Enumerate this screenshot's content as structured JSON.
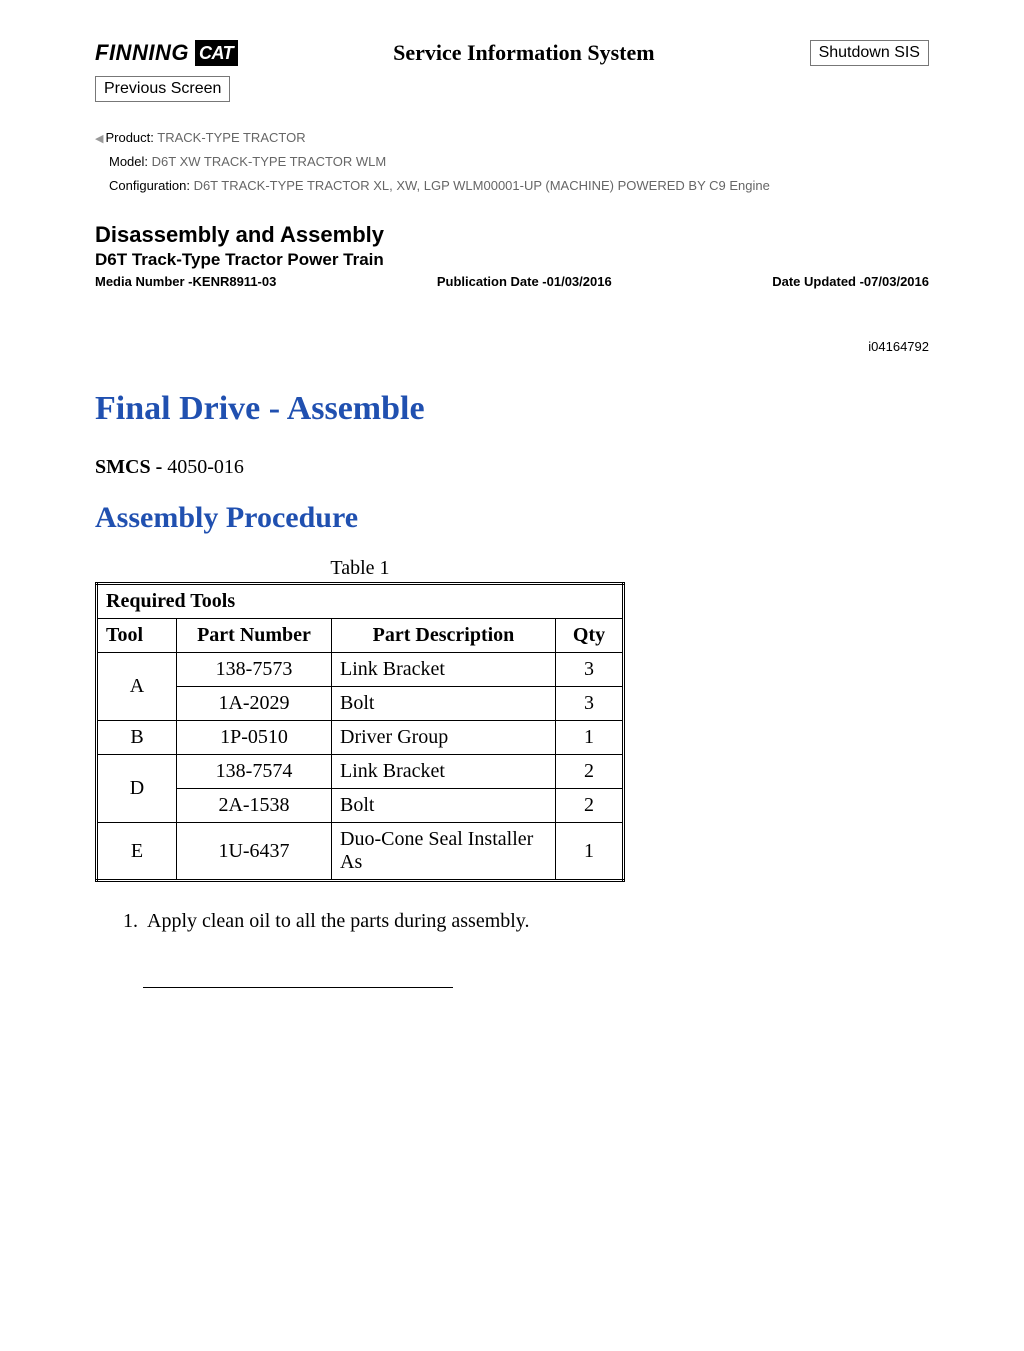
{
  "header": {
    "logo_text": "FINNING",
    "cat_badge": "CAT",
    "sis_title": "Service Information System",
    "shutdown_label": "Shutdown SIS",
    "previous_label": "Previous Screen"
  },
  "product_meta": {
    "product_label": "Product:",
    "product_value": "  TRACK-TYPE TRACTOR",
    "model_label": "Model:",
    "model_value": "  D6T XW TRACK-TYPE TRACTOR WLM",
    "config_label": "Configuration:",
    "config_value": " D6T TRACK-TYPE TRACTOR XL, XW, LGP WLM00001-UP (MACHINE) POWERED BY C9 Engine"
  },
  "doc_header": {
    "section_title": "Disassembly and Assembly",
    "section_sub": "D6T Track-Type Tractor Power Train",
    "media_number": "Media Number -KENR8911-03",
    "pub_date": "Publication Date -01/03/2016",
    "date_updated": "Date Updated -07/03/2016",
    "doc_id": "i04164792"
  },
  "content": {
    "title": "Final Drive - Assemble",
    "smcs_label": "SMCS - ",
    "smcs_value": "4050-016",
    "subtitle": "Assembly Procedure"
  },
  "table": {
    "caption": "Table 1",
    "required_header": "Required Tools",
    "columns": [
      "Tool",
      "Part Number",
      "Part Description",
      "Qty"
    ],
    "rows": [
      {
        "tool": "A",
        "span": 2,
        "pn": "138-7573",
        "desc": "Link Bracket",
        "qty": "3"
      },
      {
        "tool": "",
        "span": 0,
        "pn": "1A-2029",
        "desc": "Bolt",
        "qty": "3"
      },
      {
        "tool": "B",
        "span": 1,
        "pn": "1P-0510",
        "desc": "Driver Group",
        "qty": "1"
      },
      {
        "tool": "D",
        "span": 2,
        "pn": "138-7574",
        "desc": "Link Bracket",
        "qty": "2"
      },
      {
        "tool": "",
        "span": 0,
        "pn": "2A-1538",
        "desc": "Bolt",
        "qty": "2"
      },
      {
        "tool": "E",
        "span": 1,
        "pn": "1U-6437",
        "desc": "Duo-Cone Seal Installer As",
        "qty": "1"
      }
    ]
  },
  "steps": [
    "Apply clean oil to all the parts during assembly."
  ],
  "colors": {
    "link_blue": "#2050b0",
    "meta_gray": "#666666",
    "border": "#000000",
    "button_border": "#777777",
    "background": "#ffffff"
  }
}
